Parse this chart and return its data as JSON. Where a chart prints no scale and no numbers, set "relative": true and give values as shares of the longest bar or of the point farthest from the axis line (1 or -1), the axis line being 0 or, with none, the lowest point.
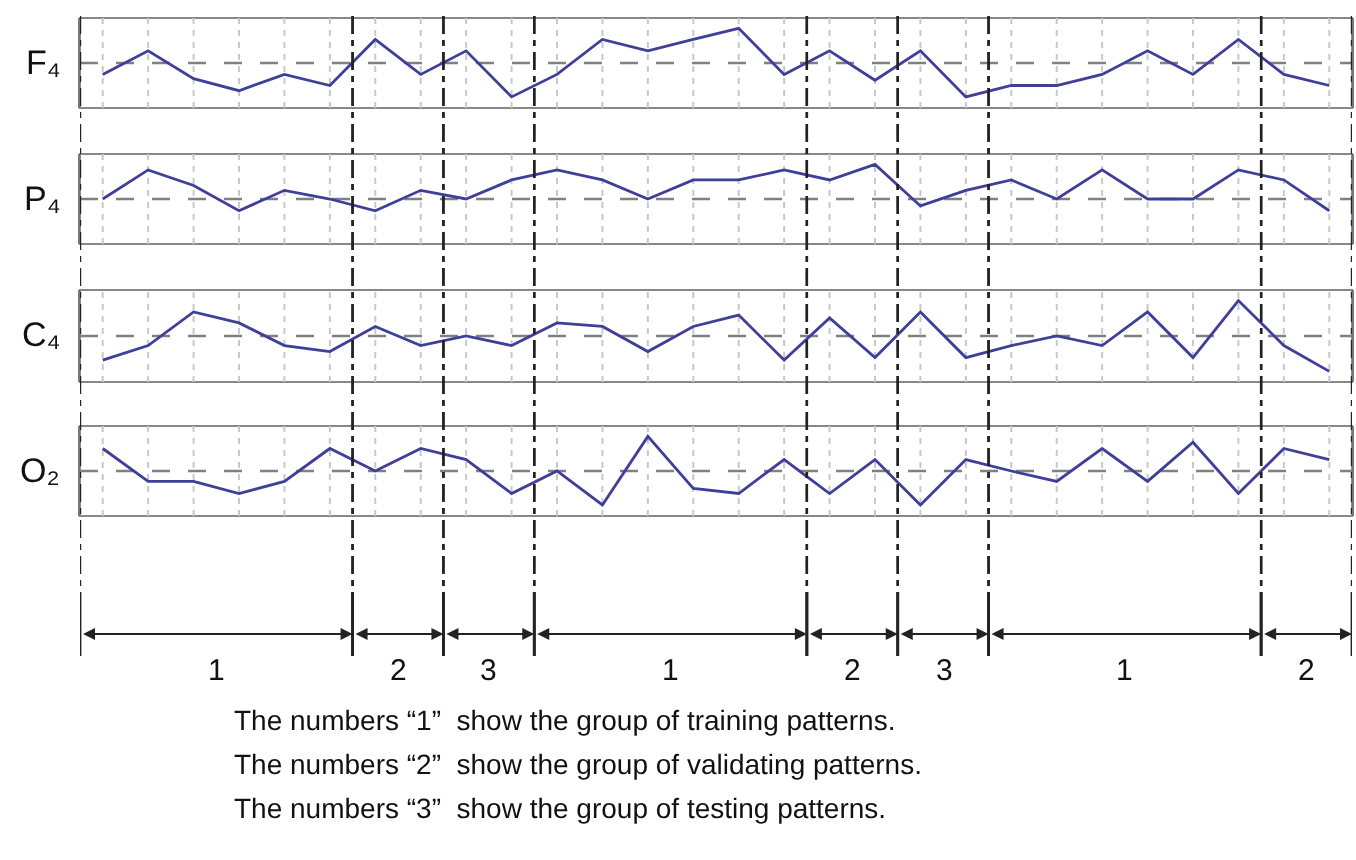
{
  "chart_data": [
    {
      "type": "line",
      "ylabel": "F₄",
      "relative": true,
      "ref_lines": [
        {
          "axis": "y",
          "value": 0,
          "color": "#808080",
          "line_style": "dashed"
        }
      ],
      "grid": "x",
      "marker": "none",
      "line_style": "solid",
      "categories": [
        null,
        null,
        null,
        null,
        null,
        null,
        null,
        null,
        null,
        null,
        null,
        null,
        null,
        null,
        null,
        null,
        null,
        null,
        null,
        null,
        null,
        null,
        null,
        null,
        null,
        null,
        null,
        null
      ],
      "series": [
        {
          "color": "#3f3f9a",
          "values": [
            -0.33,
            0.35,
            -0.45,
            -0.8,
            -0.33,
            -0.65,
            0.68,
            -0.33,
            0.35,
            -0.98,
            -0.33,
            0.68,
            0.35,
            0.68,
            1,
            -0.33,
            0.35,
            -0.5,
            0.35,
            -0.98,
            -0.65,
            -0.65,
            -0.33,
            0.35,
            -0.33,
            0.68,
            -0.33,
            -0.65
          ]
        }
      ]
    },
    {
      "type": "line",
      "ylabel": "P₄",
      "relative": true,
      "ref_lines": [
        {
          "axis": "y",
          "value": 0,
          "color": "#808080",
          "line_style": "dashed"
        }
      ],
      "grid": "x",
      "marker": "none",
      "line_style": "solid",
      "categories": [
        null,
        null,
        null,
        null,
        null,
        null,
        null,
        null,
        null,
        null,
        null,
        null,
        null,
        null,
        null,
        null,
        null,
        null,
        null,
        null,
        null,
        null,
        null,
        null,
        null,
        null,
        null,
        null
      ],
      "series": [
        {
          "color": "#3f3f9a",
          "values": [
            0,
            0.84,
            0.39,
            -0.34,
            0.25,
            0,
            -0.34,
            0.25,
            0,
            0.55,
            0.84,
            0.55,
            0,
            0.55,
            0.55,
            0.84,
            0.55,
            1,
            -0.2,
            0.25,
            0.55,
            0,
            0.84,
            0,
            0,
            0.84,
            0.55,
            -0.34
          ]
        }
      ]
    },
    {
      "type": "line",
      "ylabel": "C₄",
      "relative": true,
      "ref_lines": [
        {
          "axis": "y",
          "value": 0,
          "color": "#808080",
          "line_style": "dashed"
        }
      ],
      "grid": "x",
      "marker": "none",
      "line_style": "solid",
      "categories": [
        null,
        null,
        null,
        null,
        null,
        null,
        null,
        null,
        null,
        null,
        null,
        null,
        null,
        null,
        null,
        null,
        null,
        null,
        null,
        null,
        null,
        null,
        null,
        null,
        null,
        null,
        null,
        null
      ],
      "series": [
        {
          "color": "#3f3f9a",
          "values": [
            -0.68,
            -0.27,
            0.68,
            0.37,
            -0.27,
            -0.44,
            0.27,
            -0.27,
            0,
            -0.27,
            0.37,
            0.27,
            -0.44,
            0.27,
            0.59,
            -0.68,
            0.51,
            -0.61,
            0.68,
            -0.61,
            -0.27,
            0,
            -0.27,
            0.68,
            -0.61,
            1,
            -0.27,
            -1
          ]
        }
      ]
    },
    {
      "type": "line",
      "ylabel": "O₂",
      "relative": true,
      "ref_lines": [
        {
          "axis": "y",
          "value": 0,
          "color": "#808080",
          "line_style": "dashed"
        }
      ],
      "grid": "x",
      "marker": "none",
      "line_style": "solid",
      "categories": [
        null,
        null,
        null,
        null,
        null,
        null,
        null,
        null,
        null,
        null,
        null,
        null,
        null,
        null,
        null,
        null,
        null,
        null,
        null,
        null,
        null,
        null,
        null,
        null,
        null,
        null,
        null,
        null
      ],
      "series": [
        {
          "color": "#3f3f9a",
          "values": [
            0.65,
            -0.3,
            -0.3,
            -0.65,
            -0.3,
            0.65,
            0,
            0.65,
            0.33,
            -0.65,
            0,
            -0.98,
            1,
            -0.5,
            -0.65,
            0.33,
            -0.65,
            0.33,
            -0.98,
            0.33,
            0,
            -0.3,
            0.65,
            -0.3,
            0.83,
            -0.65,
            0.65,
            0.33
          ]
        }
      ]
    },
    {
      "type": "other",
      "annotations": [
        "1",
        "2",
        "3",
        "1",
        "2",
        "3",
        "1",
        "2",
        "The numbers “1”  show the group of training patterns.",
        "The numbers “2”  show the group of validating patterns.",
        "The numbers “3”  show the group of testing patterns."
      ]
    }
  ]
}
